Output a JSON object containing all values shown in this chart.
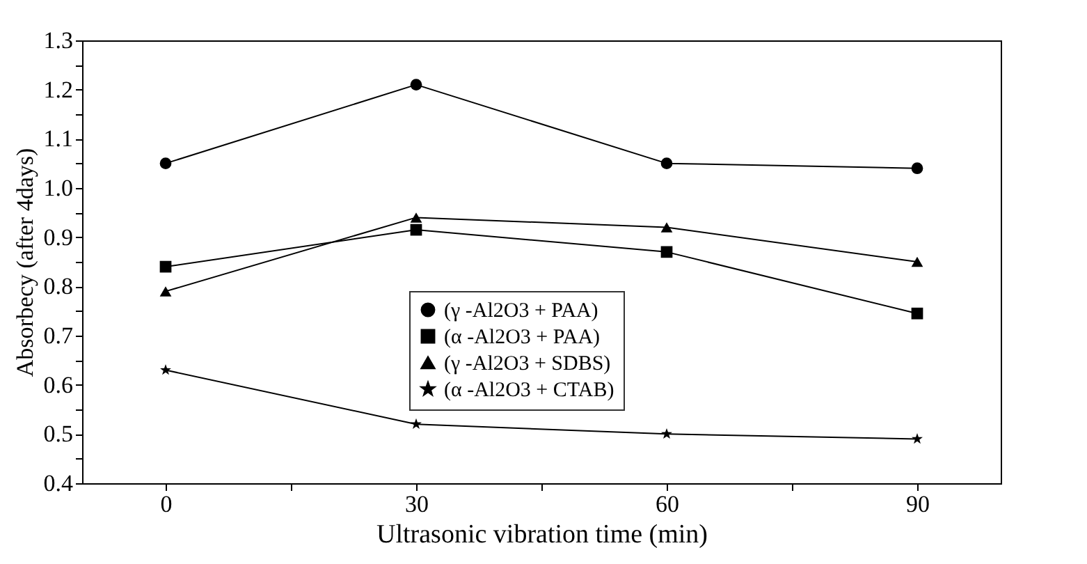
{
  "chart_data": {
    "type": "line",
    "xlabel": "Ultrasonic vibration time (min)",
    "ylabel": "Absorbecy (after 4days)",
    "x": [
      0,
      30,
      60,
      90
    ],
    "series": [
      {
        "name": "(γ -Al2O3 + PAA)",
        "color": "#000000",
        "marker": "circle",
        "values": [
          1.05,
          1.21,
          1.05,
          1.04
        ]
      },
      {
        "name": "(α -Al2O3 + PAA)",
        "color": "#000000",
        "marker": "square",
        "values": [
          0.84,
          0.915,
          0.87,
          0.745
        ]
      },
      {
        "name": "(γ -Al2O3 + SDBS)",
        "color": "#000000",
        "marker": "triangle",
        "values": [
          0.79,
          0.94,
          0.92,
          0.85
        ]
      },
      {
        "name": "(α -Al2O3 + CTAB)",
        "color": "#000000",
        "marker": "star",
        "values": [
          0.63,
          0.52,
          0.5,
          0.49
        ]
      }
    ],
    "xlim": [
      -10,
      100
    ],
    "xticks": [
      0,
      {
        "value": 15,
        "label": null
      },
      30,
      {
        "value": 45,
        "label": null
      },
      60,
      {
        "value": 75,
        "label": null
      },
      90
    ],
    "ylim": [
      0.4,
      1.3
    ],
    "yticks": [
      {
        "value": 0.4,
        "label": "0.4"
      },
      {
        "value": 0.45,
        "label": null
      },
      {
        "value": 0.5,
        "label": "0.5"
      },
      {
        "value": 0.55,
        "label": null
      },
      {
        "value": 0.6,
        "label": "0.6"
      },
      {
        "value": 0.65,
        "label": null
      },
      {
        "value": 0.7,
        "label": "0.7"
      },
      {
        "value": 0.75,
        "label": null
      },
      {
        "value": 0.8,
        "label": "0.8"
      },
      {
        "value": 0.85,
        "label": null
      },
      {
        "value": 0.9,
        "label": "0.9"
      },
      {
        "value": 0.95,
        "label": null
      },
      {
        "value": 1.0,
        "label": "1.0"
      },
      {
        "value": 1.05,
        "label": null
      },
      {
        "value": 1.1,
        "label": "1.1"
      },
      {
        "value": 1.15,
        "label": null
      },
      {
        "value": 1.2,
        "label": "1.2"
      },
      {
        "value": 1.25,
        "label": null
      },
      {
        "value": 1.3,
        "label": "1.3"
      }
    ],
    "legend": "bottom",
    "grid": false,
    "line_style": "solid"
  }
}
